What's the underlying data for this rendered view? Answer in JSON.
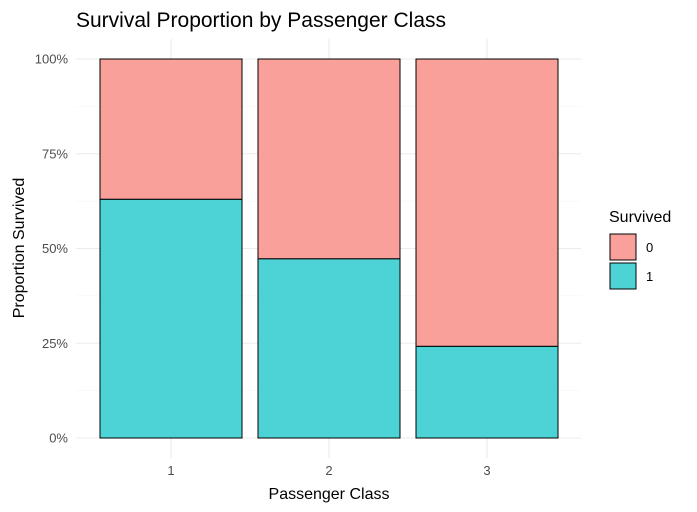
{
  "chart_data": {
    "type": "bar",
    "stacked": true,
    "normalized": true,
    "title": "Survival Proportion by Passenger Class",
    "xlabel": "Passenger Class",
    "ylabel": "Proportion Survived",
    "categories": [
      "1",
      "2",
      "3"
    ],
    "ylim": [
      0,
      1
    ],
    "y_ticks": [
      0,
      0.25,
      0.5,
      0.75,
      1
    ],
    "y_tick_labels": [
      "0%",
      "25%",
      "50%",
      "75%",
      "100%"
    ],
    "grid": true,
    "legend": {
      "title": "Survived",
      "position": "right",
      "entries": [
        "0",
        "1"
      ]
    },
    "series": [
      {
        "name": "1",
        "color": "#4dd3d6",
        "values": [
          0.63,
          0.473,
          0.242
        ]
      },
      {
        "name": "0",
        "color": "#f9a09a",
        "values": [
          0.37,
          0.527,
          0.758
        ]
      }
    ]
  }
}
